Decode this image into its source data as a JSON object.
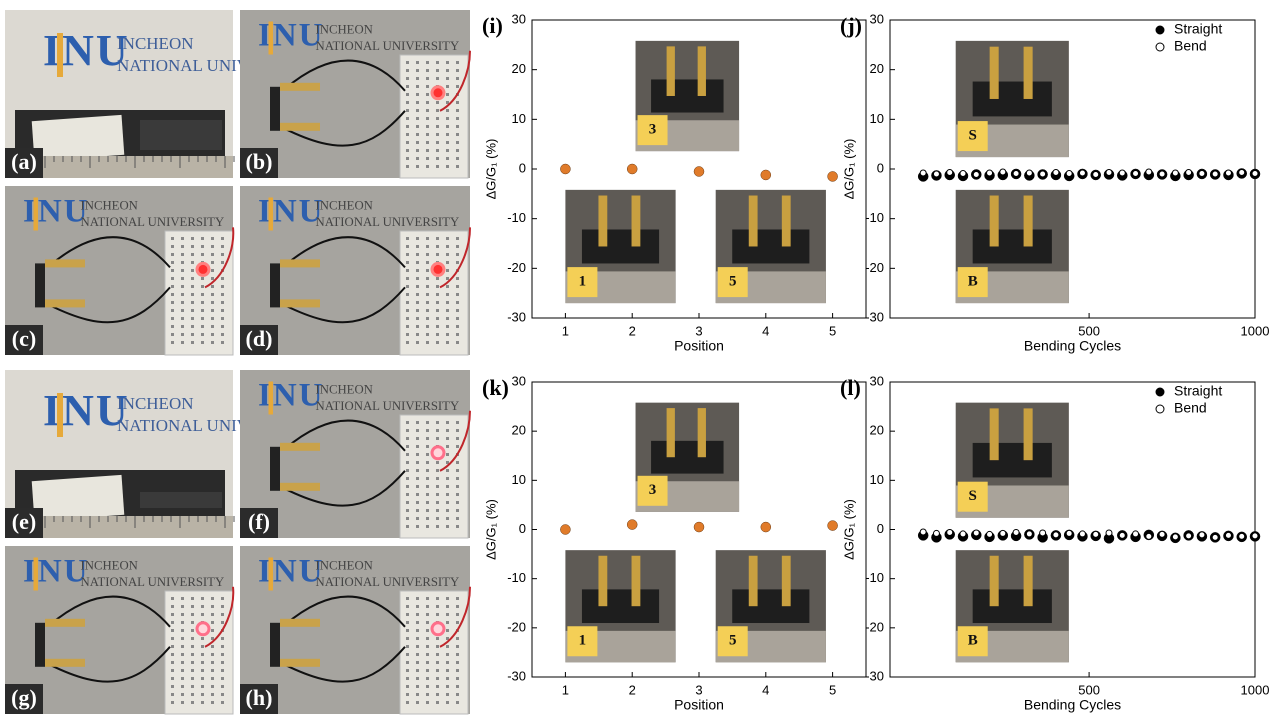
{
  "logo": {
    "mark": "INU",
    "line1": "INCHEON",
    "line2": "NATIONAL UNIVERSITY"
  },
  "photos": [
    "(a)",
    "(b)",
    "(c)",
    "(d)",
    "(e)",
    "(f)",
    "(g)",
    "(h)"
  ],
  "chart_data": [
    {
      "type": "scatter",
      "panel": "(i)",
      "xlabel": "Position",
      "ylabel": "ΔG/G₁ (%)",
      "x": [
        1,
        2,
        3,
        4,
        5
      ],
      "values": [
        0,
        0,
        -0.5,
        -1.2,
        -1.5
      ],
      "color": "#e07b2a",
      "xlim": [
        0.5,
        5.5
      ],
      "xticks": [
        1,
        2,
        3,
        4,
        5
      ],
      "ylim": [
        -30,
        30
      ],
      "yticks": [
        -30,
        -20,
        -10,
        0,
        10,
        20,
        30
      ],
      "insets": [
        "3",
        "1",
        "5"
      ]
    },
    {
      "type": "scatter",
      "panel": "(j)",
      "xlabel": "Bending Cycles",
      "ylabel": "ΔG/G₁ (%)",
      "x": [
        0,
        40,
        80,
        120,
        160,
        200,
        240,
        280,
        320,
        360,
        400,
        440,
        480,
        520,
        560,
        600,
        640,
        680,
        720,
        760,
        800,
        840,
        880,
        920,
        960,
        1000
      ],
      "series": [
        {
          "name": "Straight",
          "color": "#000000",
          "values": [
            -1.5,
            -1.3,
            -1.2,
            -1.4,
            -1.1,
            -1.3,
            -1.2,
            -1.0,
            -1.3,
            -1.1,
            -1.2,
            -1.4,
            -1.0,
            -1.2,
            -1.1,
            -1.3,
            -1.0,
            -1.2,
            -1.1,
            -1.4,
            -1.2,
            -1.0,
            -1.1,
            -1.2,
            -0.9,
            -1.0
          ]
        },
        {
          "name": "Bend",
          "color": "#ffffff",
          "values": [
            -0.8,
            -1.0,
            -0.7,
            -0.9,
            -1.1,
            -0.8,
            -0.6,
            -0.9,
            -0.8,
            -1.0,
            -0.7,
            -0.9,
            -0.8,
            -1.1,
            -0.7,
            -0.8,
            -0.9,
            -0.6,
            -1.0,
            -0.8,
            -0.7,
            -0.9,
            -1.0,
            -0.8,
            -0.7,
            -0.9
          ]
        }
      ],
      "xlim": [
        -100,
        1000
      ],
      "xticks": [
        500,
        1000
      ],
      "ylim": [
        -30,
        30
      ],
      "yticks": [
        -30,
        -20,
        -10,
        0,
        10,
        20,
        30
      ],
      "legend": "top-right",
      "insets": [
        "S",
        "B"
      ]
    },
    {
      "type": "scatter",
      "panel": "(k)",
      "xlabel": "Position",
      "ylabel": "ΔG/G₁ (%)",
      "x": [
        1,
        2,
        3,
        4,
        5
      ],
      "values": [
        0,
        1,
        0.5,
        0.5,
        0.8
      ],
      "color": "#e07b2a",
      "xlim": [
        0.5,
        5.5
      ],
      "xticks": [
        1,
        2,
        3,
        4,
        5
      ],
      "ylim": [
        -30,
        30
      ],
      "yticks": [
        -30,
        -20,
        -10,
        0,
        10,
        20,
        30
      ],
      "insets": [
        "3",
        "1",
        "5"
      ]
    },
    {
      "type": "scatter",
      "panel": "(l)",
      "xlabel": "Bending Cycles",
      "ylabel": "ΔG/G₁ (%)",
      "x": [
        0,
        40,
        80,
        120,
        160,
        200,
        240,
        280,
        320,
        360,
        400,
        440,
        480,
        520,
        560,
        600,
        640,
        680,
        720,
        760,
        800,
        840,
        880,
        920,
        960,
        1000
      ],
      "series": [
        {
          "name": "Straight",
          "color": "#000000",
          "values": [
            -1.2,
            -1.6,
            -1.0,
            -1.4,
            -1.1,
            -1.5,
            -1.2,
            -1.3,
            -1.0,
            -1.6,
            -1.2,
            -1.1,
            -1.4,
            -1.3,
            -1.8,
            -1.2,
            -1.5,
            -1.1,
            -1.3,
            -1.7,
            -1.2,
            -1.4,
            -1.6,
            -1.3,
            -1.5,
            -1.4
          ]
        },
        {
          "name": "Bend",
          "color": "#ffffff",
          "values": [
            -0.5,
            -0.8,
            -0.6,
            -0.9,
            -0.7,
            -1.0,
            -0.8,
            -0.6,
            -0.9,
            -0.7,
            -1.1,
            -0.8,
            -0.9,
            -1.0,
            -0.7,
            -1.2,
            -0.9,
            -1.4,
            -1.0,
            -1.5,
            -1.3,
            -1.1,
            -1.6,
            -1.2,
            -1.4,
            -1.3
          ]
        }
      ],
      "xlim": [
        -100,
        1000
      ],
      "xticks": [
        500,
        1000
      ],
      "ylim": [
        -30,
        30
      ],
      "yticks": [
        -30,
        -20,
        -10,
        0,
        10,
        20,
        30
      ],
      "legend": "top-right",
      "insets": [
        "S",
        "B"
      ]
    }
  ]
}
